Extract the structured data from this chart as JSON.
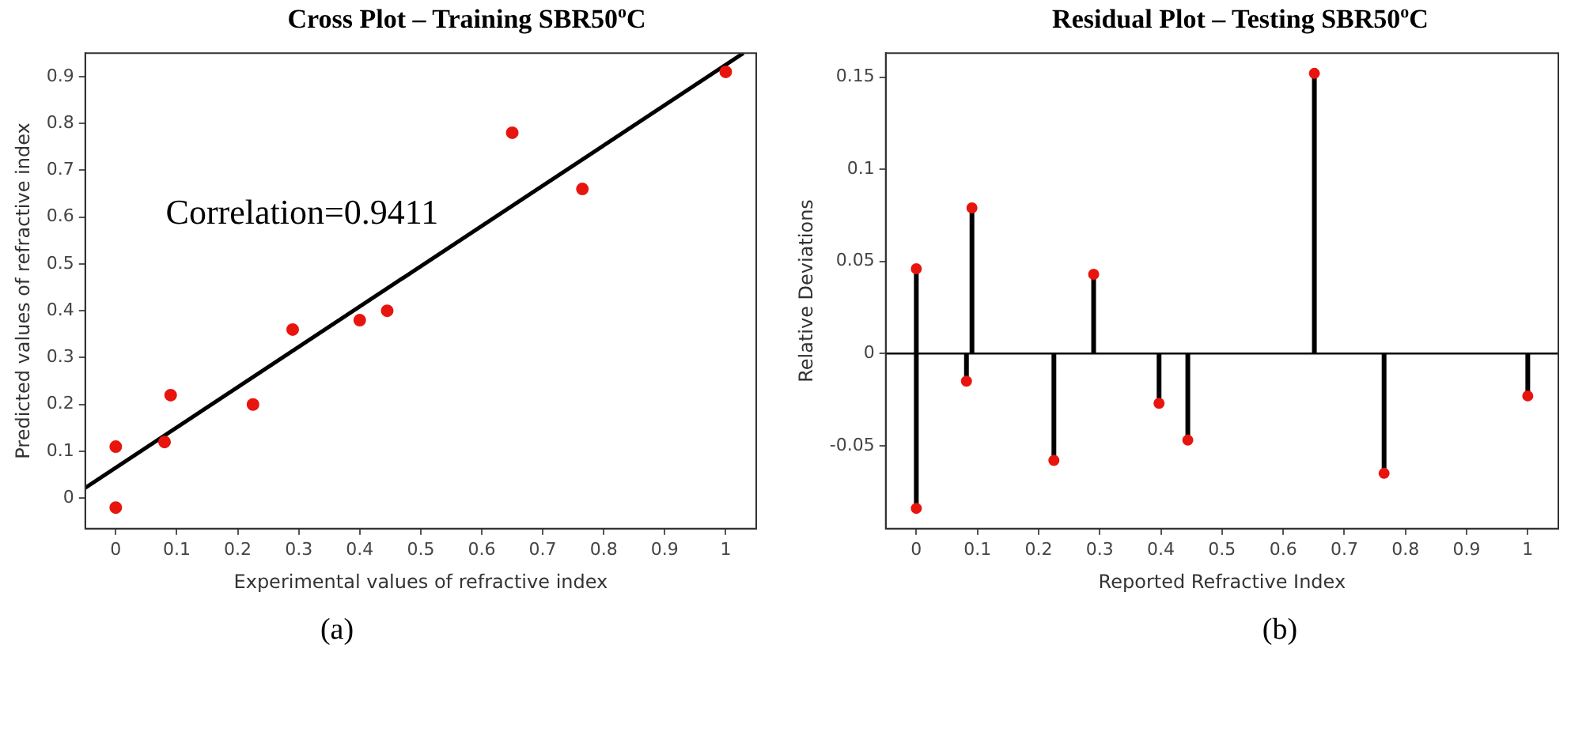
{
  "chart_data": [
    {
      "type": "scatter",
      "title": "Cross Plot – Training SBR50$^{o}$C",
      "xlabel": "Experimental values of refractive index",
      "ylabel": "Predicted values of refractive index",
      "xlim": [
        -0.05,
        1.05
      ],
      "xticks": [
        0,
        0.1,
        0.2,
        0.3,
        0.4,
        0.5,
        0.6,
        0.7,
        0.8,
        0.9,
        1
      ],
      "ylim": [
        -0.065,
        0.95
      ],
      "yticks": [
        0,
        0.1,
        0.2,
        0.3,
        0.4,
        0.5,
        0.6,
        0.7,
        0.8,
        0.9
      ],
      "grid": false,
      "legend": false,
      "marker": "circle",
      "series": [
        {
          "color": "#e8150f",
          "x": [
            0,
            0,
            0.08,
            0.09,
            0.225,
            0.29,
            0.4,
            0.445,
            0.65,
            0.765,
            1
          ],
          "values": [
            0.11,
            -0.02,
            0.12,
            0.22,
            0.2,
            0.36,
            0.38,
            0.4,
            0.78,
            0.66,
            0.91
          ]
        },
        {
          "type": "line",
          "marker": "none",
          "color": "#000000",
          "x": [
            -0.05,
            1.029
          ],
          "values": [
            0.022,
            0.95
          ]
        }
      ],
      "annotations": [
        "Correlation=0.9411",
        "(a)"
      ]
    },
    {
      "type": "lollipop",
      "title": "Residual Plot – Testing SBR50$^{o}$C",
      "xlabel": "Reported Refractive Index",
      "ylabel": "Relative Deviations",
      "xlim": [
        -0.05,
        1.05
      ],
      "xticks": [
        0,
        0.1,
        0.2,
        0.3,
        0.4,
        0.5,
        0.6,
        0.7,
        0.8,
        0.9,
        1
      ],
      "ylim": [
        -0.095,
        0.163
      ],
      "yticks": [
        -0.05,
        0,
        0.05,
        0.1,
        0.15
      ],
      "grid": false,
      "legend": false,
      "marker": "circle",
      "series": [
        {
          "color": "#e8150f",
          "x": [
            0,
            0,
            0.082,
            0.091,
            0.225,
            0.29,
            0.397,
            0.444,
            0.651,
            0.765,
            1
          ],
          "values": [
            0.046,
            -0.084,
            -0.015,
            0.079,
            -0.058,
            0.043,
            -0.027,
            -0.047,
            0.152,
            -0.065,
            -0.023
          ]
        }
      ],
      "ref_lines": [
        {
          "axis": "y",
          "value": 0,
          "color": "#000000"
        }
      ],
      "annotations": [
        "(b)"
      ]
    }
  ]
}
